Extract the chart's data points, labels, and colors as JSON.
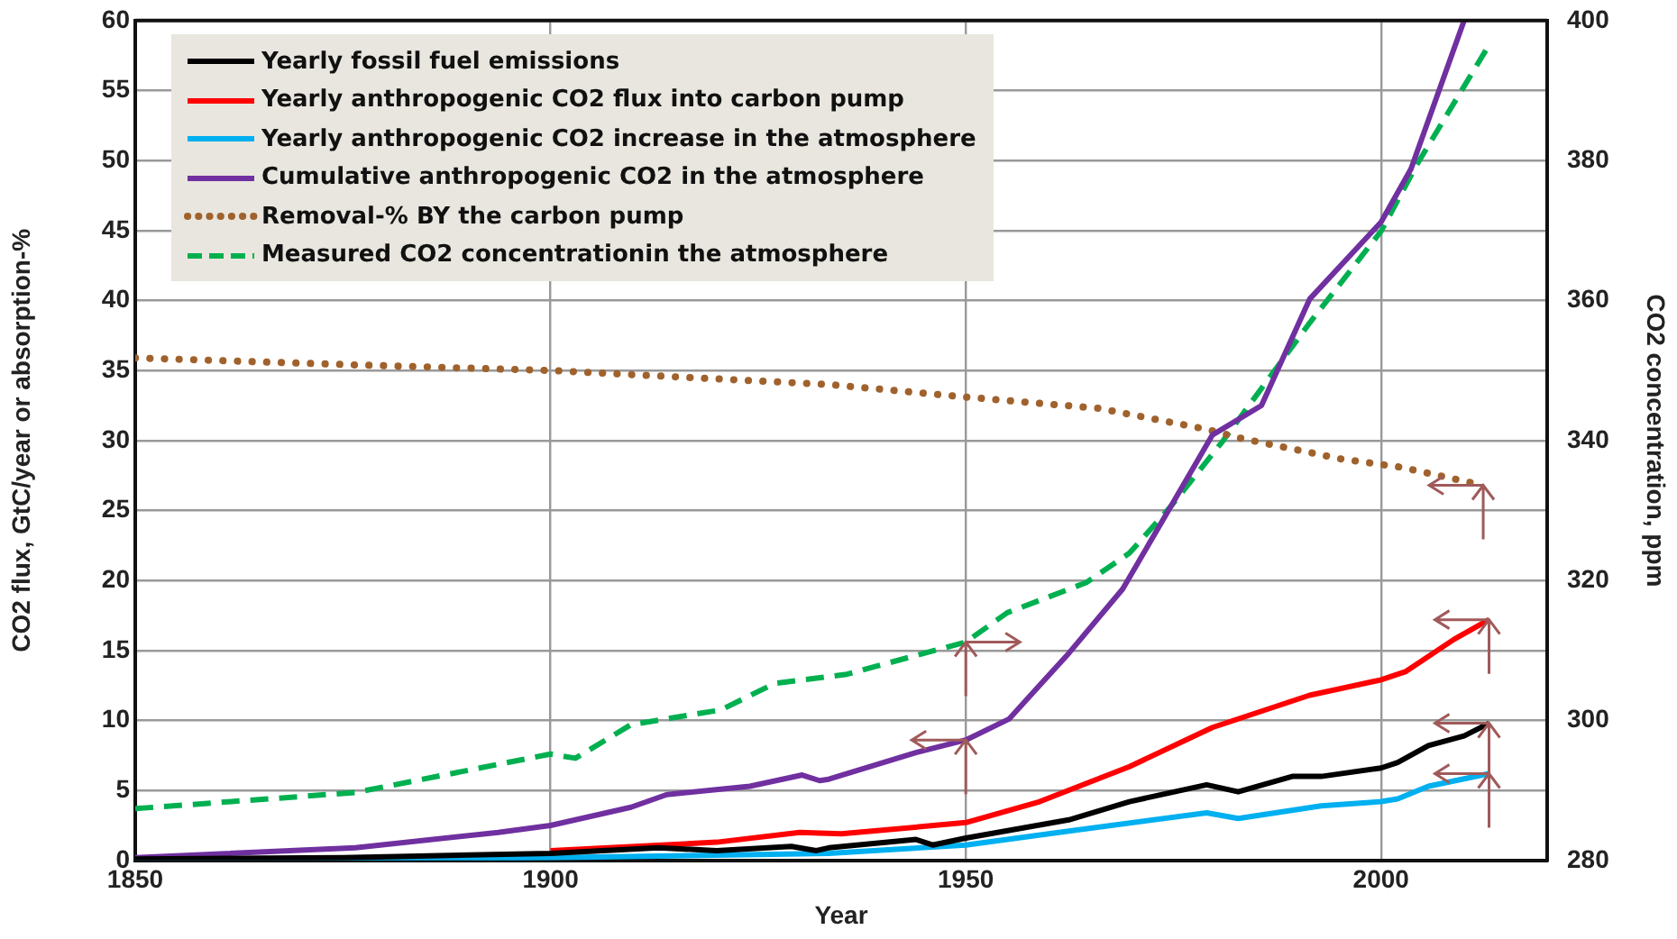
{
  "chart_data": {
    "type": "line",
    "xlabel": "Year",
    "ylabel": "CO2 flux, GtC/year or absorption-%",
    "y2label": "CO2 concentration, ppm",
    "xlim": [
      1850,
      2020
    ],
    "xticks": [
      1850,
      1900,
      1950,
      2000
    ],
    "ylim": [
      0,
      60
    ],
    "yticks": [
      0,
      5,
      10,
      15,
      20,
      25,
      30,
      35,
      40,
      45,
      50,
      55,
      60
    ],
    "y2lim": [
      280,
      400
    ],
    "y2ticks": [
      280,
      300,
      320,
      340,
      360,
      380,
      400
    ],
    "grid": true,
    "legend": "top left",
    "marker": "none",
    "series": [
      {
        "name": "Yearly fossil fuel emissions",
        "color": "#000000",
        "line_style": "solid",
        "x": [
          1850,
          1875,
          1900,
          1913,
          1920,
          1929,
          1932,
          1933.5,
          1944,
          1946,
          1950,
          1962.4,
          1969.7,
          1979,
          1982.8,
          1989.3,
          1992.8,
          2000,
          2002,
          2005.7,
          2010,
          2013
        ],
        "values": [
          0.1,
          0.2,
          0.5,
          0.9,
          0.7,
          1.0,
          0.7,
          0.9,
          1.5,
          1.1,
          1.6,
          2.9,
          4.2,
          5.4,
          4.9,
          6.0,
          6.0,
          6.6,
          7.0,
          8.2,
          8.9,
          9.8
        ]
      },
      {
        "name": "Yearly anthropogenic CO2 flux into carbon pump",
        "color": "#ff0000",
        "line_style": "solid",
        "x": [
          1900,
          1920,
          1930,
          1935,
          1950,
          1958.9,
          1969.7,
          1979.7,
          1991.4,
          2000,
          2003,
          2008.8,
          2013
        ],
        "values": [
          0.7,
          1.3,
          2.0,
          1.9,
          2.7,
          4.2,
          6.7,
          9.5,
          11.8,
          12.9,
          13.5,
          15.8,
          17.2
        ]
      },
      {
        "name": "Yearly anthropogenic CO2 increase in the atmosphere",
        "color": "#00b0f0",
        "line_style": "solid",
        "x": [
          1850,
          1900,
          1933.5,
          1950,
          1962.4,
          1979,
          1982.8,
          1992.8,
          2000,
          2002,
          2005.7,
          2013
        ],
        "values": [
          0,
          0.2,
          0.5,
          1.1,
          2.1,
          3.4,
          3.0,
          3.9,
          4.2,
          4.4,
          5.3,
          6.2
        ]
      },
      {
        "name": "Cumulative anthropogenic CO2 in the atmosphere",
        "color": "#7030a0",
        "line_style": "solid",
        "x": [
          1850,
          1876.5,
          1893.7,
          1900,
          1909.7,
          1914,
          1924,
          1930.3,
          1932.4,
          1933.5,
          1944,
          1950,
          1955.2,
          1962.4,
          1968.9,
          1974.7,
          1979.7,
          1985.6,
          1991.4,
          2000,
          2003.6,
          2010
        ],
        "values": [
          0.2,
          0.9,
          2.0,
          2.5,
          3.8,
          4.7,
          5.3,
          6.1,
          5.7,
          5.8,
          7.7,
          8.6,
          10.1,
          14.8,
          19.4,
          25.3,
          30.4,
          32.5,
          40.1,
          45.6,
          49.4,
          60
        ]
      },
      {
        "name": "Removal-% BY the carbon pump",
        "color": "#a0622d",
        "line_style": "dotted",
        "x": [
          1850,
          1876.5,
          1900,
          1920,
          1933.5,
          1950,
          1966,
          1979,
          1982.8,
          1995,
          2002.3,
          2012.3
        ],
        "values": [
          35.9,
          35.4,
          35.0,
          34.4,
          34.0,
          33.1,
          32.3,
          30.8,
          30.2,
          28.7,
          28.1,
          26.8
        ]
      },
      {
        "name": "Measured CO2 concentrationin the atmosphere",
        "color": "#00b050",
        "line_style": "dashed",
        "axis": "y2",
        "x": [
          1850,
          1876.5,
          1900,
          1903,
          1909.7,
          1920.5,
          1927,
          1935.7,
          1940,
          1950,
          1955,
          1964.5,
          1969.7,
          1974.7,
          1981,
          1991.4,
          2000,
          2004.4,
          2013
        ],
        "values": [
          287.4,
          289.7,
          295.2,
          294.6,
          299.4,
          301.5,
          305.3,
          306.6,
          308,
          311.2,
          315.4,
          319.7,
          323.9,
          330.6,
          340,
          356.8,
          369.9,
          379.6,
          396.5
        ]
      }
    ]
  }
}
